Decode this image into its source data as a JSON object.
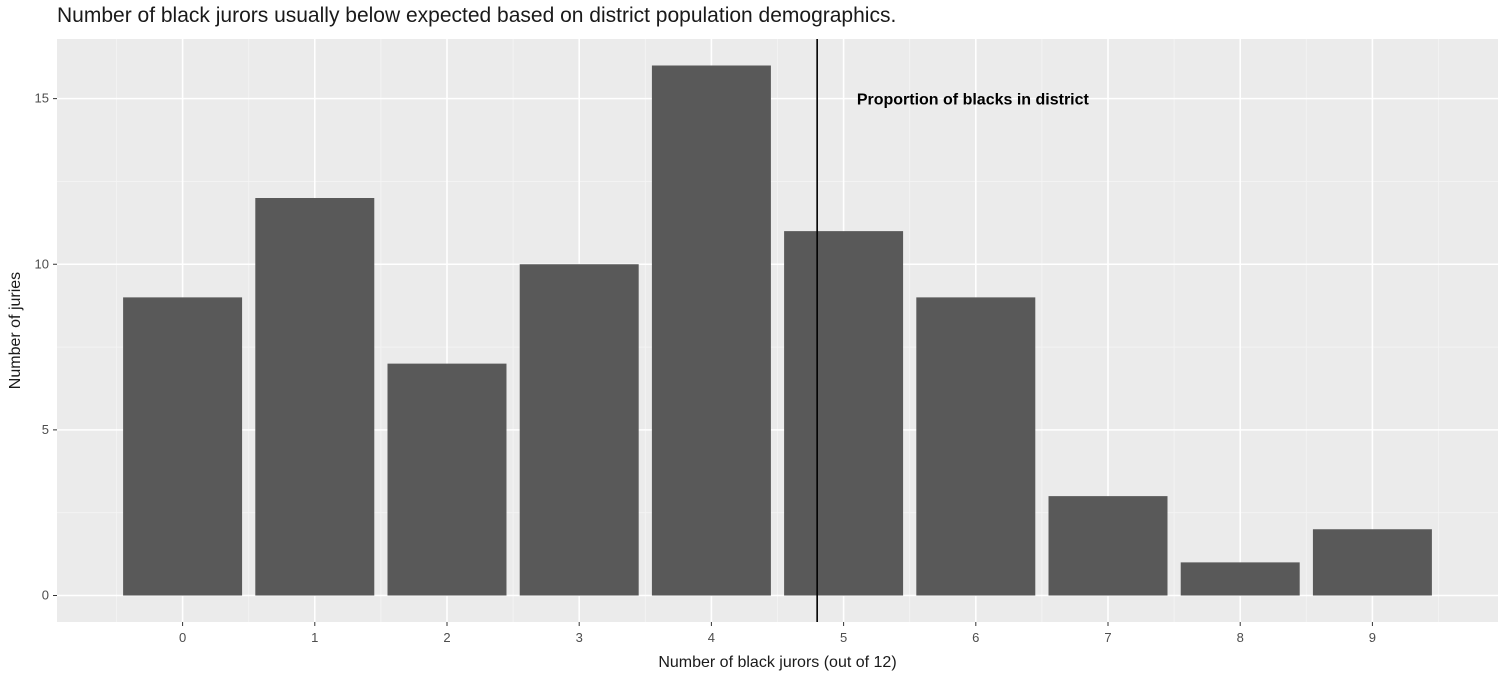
{
  "chart_data": {
    "type": "bar",
    "title": "Number of black jurors usually below expected based on district population demographics.",
    "xlabel": "Number of black jurors (out of 12)",
    "ylabel": "Number of juries",
    "categories": [
      "0",
      "1",
      "2",
      "3",
      "4",
      "5",
      "6",
      "7",
      "8",
      "9"
    ],
    "values": [
      9,
      12,
      7,
      10,
      16,
      11,
      9,
      3,
      1,
      2
    ],
    "y_ticks": [
      "0",
      "5",
      "10",
      "15"
    ],
    "ylim": [
      -0.8,
      16.8
    ],
    "xlim": [
      -0.95,
      9.95
    ],
    "grid": true,
    "bar_color": "#595959",
    "panel_background": "#ebebeb",
    "reference_line": {
      "x": 4.8,
      "color": "#000000"
    },
    "annotation": {
      "text": "Proportion of blacks in district",
      "x": 5.1,
      "y": 15
    }
  }
}
